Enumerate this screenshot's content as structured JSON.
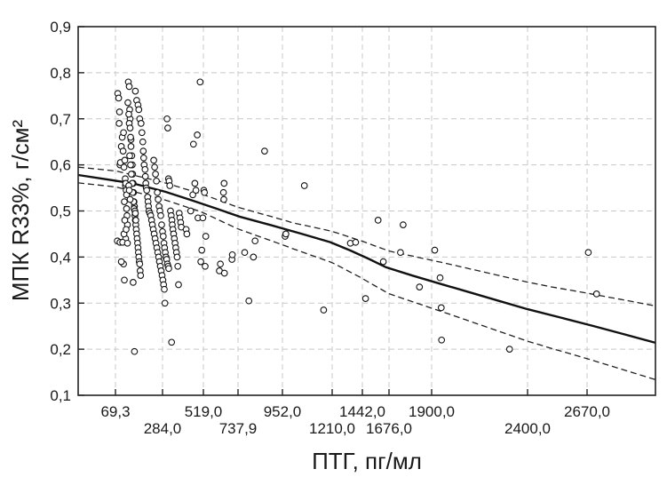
{
  "chart_data": {
    "type": "scatter",
    "title": "",
    "xlabel": "ПТГ, пг/мл",
    "ylabel": "МПК R33%, г/см²",
    "ylim": [
      0.1,
      0.9
    ],
    "y_ticks": [
      "0,1",
      "0,2",
      "0,3",
      "0,4",
      "0,5",
      "0,6",
      "0,7",
      "0,8",
      "0,9"
    ],
    "x_ticks": [
      {
        "label": "69,3",
        "value": 69.3,
        "row": 1
      },
      {
        "label": "284,0",
        "value": 284.0,
        "row": 2
      },
      {
        "label": "519,0",
        "value": 519.0,
        "row": 1
      },
      {
        "label": "737,9",
        "value": 737.9,
        "row": 2
      },
      {
        "label": "952,0",
        "value": 952.0,
        "row": 1
      },
      {
        "label": "1210,0",
        "value": 1210.0,
        "row": 2
      },
      {
        "label": "1442,0",
        "value": 1442.0,
        "row": 1
      },
      {
        "label": "1676,0",
        "value": 1676.0,
        "row": 2
      },
      {
        "label": "1900,0",
        "value": 1900.0,
        "row": 1
      },
      {
        "label": "2400,0",
        "value": 2400.0,
        "row": 2
      },
      {
        "label": "2670,0",
        "value": 2670.0,
        "row": 1
      }
    ],
    "grid": true,
    "regression": {
      "x": [
        0,
        3000
      ],
      "y": [
        0.578,
        0.214
      ]
    },
    "ci_upper": {
      "x": [
        0,
        500,
        1000,
        1500,
        2000,
        2500,
        3000
      ],
      "y": [
        0.595,
        0.538,
        0.475,
        0.429,
        0.384,
        0.336,
        0.294
      ]
    },
    "ci_lower": {
      "x": [
        0,
        500,
        1000,
        1500,
        2000,
        2500,
        3000
      ],
      "y": [
        0.561,
        0.499,
        0.419,
        0.345,
        0.275,
        0.203,
        0.134
      ]
    },
    "points": [
      [
        80,
        0.755
      ],
      [
        84,
        0.745
      ],
      [
        86,
        0.69
      ],
      [
        88,
        0.715
      ],
      [
        90,
        0.6
      ],
      [
        92,
        0.605
      ],
      [
        96,
        0.64
      ],
      [
        100,
        0.66
      ],
      [
        104,
        0.63
      ],
      [
        108,
        0.595
      ],
      [
        112,
        0.61
      ],
      [
        114,
        0.57
      ],
      [
        115,
        0.555
      ],
      [
        118,
        0.545
      ],
      [
        120,
        0.535
      ],
      [
        120,
        0.505
      ],
      [
        122,
        0.49
      ],
      [
        124,
        0.47
      ],
      [
        116,
        0.56
      ],
      [
        106,
        0.67
      ],
      [
        110,
        0.52
      ],
      [
        112,
        0.48
      ],
      [
        116,
        0.44
      ],
      [
        78,
        0.435
      ],
      [
        90,
        0.432
      ],
      [
        102,
        0.432
      ],
      [
        108,
        0.45
      ],
      [
        106,
        0.385
      ],
      [
        110,
        0.35
      ],
      [
        96,
        0.39
      ],
      [
        118,
        0.46
      ],
      [
        124,
        0.43
      ],
      [
        128,
        0.78
      ],
      [
        132,
        0.77
      ],
      [
        134,
        0.72
      ],
      [
        136,
        0.7
      ],
      [
        140,
        0.655
      ],
      [
        126,
        0.735
      ],
      [
        130,
        0.71
      ],
      [
        132,
        0.69
      ],
      [
        136,
        0.68
      ],
      [
        138,
        0.66
      ],
      [
        140,
        0.64
      ],
      [
        144,
        0.62
      ],
      [
        146,
        0.6
      ],
      [
        148,
        0.58
      ],
      [
        150,
        0.56
      ],
      [
        152,
        0.54
      ],
      [
        154,
        0.52
      ],
      [
        156,
        0.51
      ],
      [
        158,
        0.49
      ],
      [
        160,
        0.48
      ],
      [
        162,
        0.47
      ],
      [
        164,
        0.46
      ],
      [
        166,
        0.45
      ],
      [
        168,
        0.44
      ],
      [
        170,
        0.43
      ],
      [
        172,
        0.42
      ],
      [
        174,
        0.41
      ],
      [
        176,
        0.4
      ],
      [
        178,
        0.39
      ],
      [
        180,
        0.385
      ],
      [
        182,
        0.37
      ],
      [
        184,
        0.36
      ],
      [
        150,
        0.345
      ],
      [
        156,
        0.195
      ],
      [
        134,
        0.62
      ],
      [
        138,
        0.6
      ],
      [
        142,
        0.58
      ],
      [
        146,
        0.56
      ],
      [
        148,
        0.54
      ],
      [
        152,
        0.52
      ],
      [
        154,
        0.505
      ],
      [
        158,
        0.5
      ],
      [
        160,
        0.495
      ],
      [
        162,
        0.48
      ],
      [
        130,
        0.555
      ],
      [
        132,
        0.545
      ],
      [
        136,
        0.525
      ],
      [
        160,
        0.76
      ],
      [
        166,
        0.74
      ],
      [
        172,
        0.73
      ],
      [
        176,
        0.72
      ],
      [
        180,
        0.7
      ],
      [
        186,
        0.69
      ],
      [
        190,
        0.67
      ],
      [
        194,
        0.65
      ],
      [
        196,
        0.63
      ],
      [
        198,
        0.615
      ],
      [
        200,
        0.6
      ],
      [
        204,
        0.59
      ],
      [
        206,
        0.575
      ],
      [
        208,
        0.56
      ],
      [
        210,
        0.55
      ],
      [
        212,
        0.545
      ],
      [
        216,
        0.53
      ],
      [
        218,
        0.52
      ],
      [
        220,
        0.51
      ],
      [
        222,
        0.5
      ],
      [
        226,
        0.495
      ],
      [
        230,
        0.49
      ],
      [
        234,
        0.48
      ],
      [
        238,
        0.47
      ],
      [
        242,
        0.46
      ],
      [
        246,
        0.45
      ],
      [
        250,
        0.44
      ],
      [
        254,
        0.43
      ],
      [
        258,
        0.42
      ],
      [
        262,
        0.41
      ],
      [
        266,
        0.4
      ],
      [
        270,
        0.39
      ],
      [
        274,
        0.38
      ],
      [
        278,
        0.37
      ],
      [
        282,
        0.36
      ],
      [
        286,
        0.35
      ],
      [
        290,
        0.34
      ],
      [
        294,
        0.33
      ],
      [
        298,
        0.3
      ],
      [
        244,
        0.61
      ],
      [
        248,
        0.595
      ],
      [
        252,
        0.58
      ],
      [
        256,
        0.565
      ],
      [
        260,
        0.54
      ],
      [
        264,
        0.525
      ],
      [
        268,
        0.51
      ],
      [
        272,
        0.5
      ],
      [
        276,
        0.49
      ],
      [
        280,
        0.47
      ],
      [
        284,
        0.455
      ],
      [
        288,
        0.445
      ],
      [
        292,
        0.43
      ],
      [
        296,
        0.42
      ],
      [
        300,
        0.41
      ],
      [
        304,
        0.4
      ],
      [
        308,
        0.395
      ],
      [
        312,
        0.385
      ],
      [
        316,
        0.38
      ],
      [
        320,
        0.375
      ],
      [
        310,
        0.7
      ],
      [
        314,
        0.68
      ],
      [
        318,
        0.57
      ],
      [
        322,
        0.565
      ],
      [
        326,
        0.555
      ],
      [
        330,
        0.5
      ],
      [
        334,
        0.49
      ],
      [
        338,
        0.48
      ],
      [
        340,
        0.47
      ],
      [
        344,
        0.46
      ],
      [
        348,
        0.45
      ],
      [
        352,
        0.44
      ],
      [
        356,
        0.43
      ],
      [
        360,
        0.42
      ],
      [
        364,
        0.41
      ],
      [
        368,
        0.4
      ],
      [
        372,
        0.38
      ],
      [
        376,
        0.34
      ],
      [
        336,
        0.215
      ],
      [
        380,
        0.495
      ],
      [
        384,
        0.485
      ],
      [
        388,
        0.475
      ],
      [
        392,
        0.465
      ],
      [
        420,
        0.46
      ],
      [
        424,
        0.45
      ],
      [
        446,
        0.5
      ],
      [
        458,
        0.535
      ],
      [
        462,
        0.645
      ],
      [
        470,
        0.56
      ],
      [
        476,
        0.545
      ],
      [
        484,
        0.665
      ],
      [
        488,
        0.485
      ],
      [
        500,
        0.78
      ],
      [
        504,
        0.39
      ],
      [
        510,
        0.415
      ],
      [
        516,
        0.485
      ],
      [
        522,
        0.545
      ],
      [
        526,
        0.54
      ],
      [
        530,
        0.38
      ],
      [
        534,
        0.445
      ],
      [
        620,
        0.37
      ],
      [
        626,
        0.385
      ],
      [
        646,
        0.54
      ],
      [
        648,
        0.525
      ],
      [
        650,
        0.56
      ],
      [
        652,
        0.365
      ],
      [
        700,
        0.395
      ],
      [
        702,
        0.405
      ],
      [
        770,
        0.41
      ],
      [
        790,
        0.305
      ],
      [
        812,
        0.4
      ],
      [
        820,
        0.435
      ],
      [
        866,
        0.63
      ],
      [
        966,
        0.445
      ],
      [
        970,
        0.45
      ],
      [
        1066,
        0.555
      ],
      [
        1166,
        0.285
      ],
      [
        1350,
        0.43
      ],
      [
        1390,
        0.432
      ],
      [
        1470,
        0.31
      ],
      [
        1580,
        0.48
      ],
      [
        1626,
        0.39
      ],
      [
        1736,
        0.41
      ],
      [
        1750,
        0.47
      ],
      [
        1836,
        0.335
      ],
      [
        1916,
        0.415
      ],
      [
        1944,
        0.355
      ],
      [
        1950,
        0.29
      ],
      [
        1952,
        0.22
      ],
      [
        2306,
        0.2
      ],
      [
        2676,
        0.41
      ],
      [
        2716,
        0.32
      ]
    ]
  }
}
